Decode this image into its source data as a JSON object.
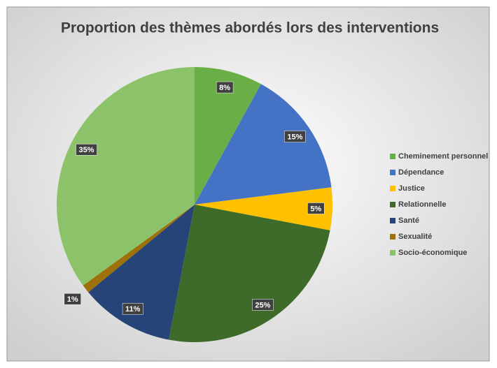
{
  "chart_data": {
    "type": "pie",
    "title": "Proportion des thèmes abordés lors des interventions",
    "categories": [
      "Cheminement personnel",
      "Dépendance",
      "Justice",
      "Relationnelle",
      "Santé",
      "Sexualité",
      "Socio-économique"
    ],
    "values": [
      8,
      15,
      5,
      25,
      11,
      1,
      35
    ],
    "value_labels": [
      "8%",
      "15%",
      "5%",
      "25%",
      "11%",
      "1%",
      "35%"
    ],
    "colors": [
      "#6aae48",
      "#4472c4",
      "#ffc000",
      "#3e6b29",
      "#264478",
      "#9e7009",
      "#8cc36a"
    ],
    "legend": "right"
  }
}
